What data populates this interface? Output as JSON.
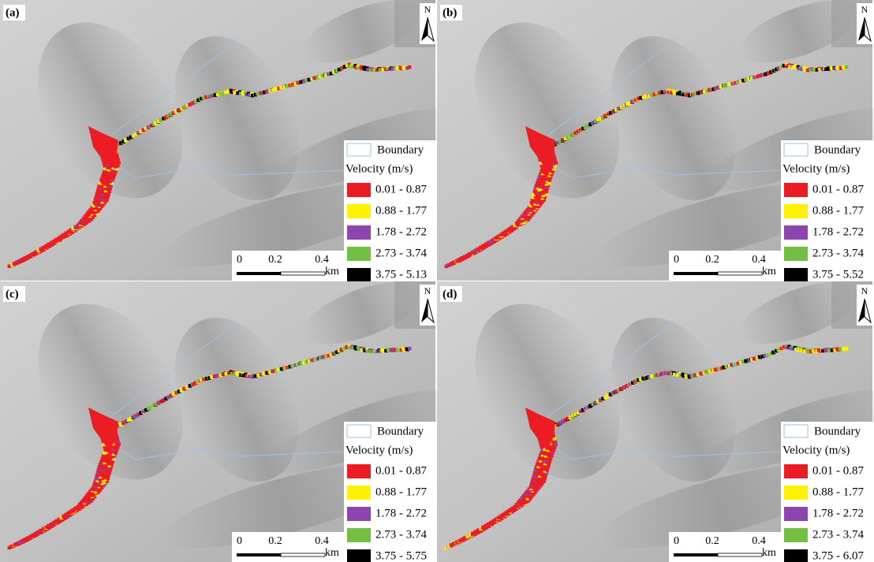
{
  "panels": [
    {
      "label": "(a)",
      "north": "N",
      "legend": {
        "boundary": "Boundary",
        "title": "Velocity (m/s)",
        "classes": [
          {
            "label": "0.01 - 0.87",
            "color": "#ec1c24"
          },
          {
            "label": "0.88 - 1.77",
            "color": "#fff200"
          },
          {
            "label": "1.78 - 2.72",
            "color": "#8e44ad"
          },
          {
            "label": "2.73 - 3.74",
            "color": "#72bf44"
          },
          {
            "label": "3.75 - 5.13",
            "color": "#000000"
          }
        ]
      },
      "scale": {
        "ticks": [
          "0",
          "0.2",
          "0.4"
        ],
        "unit": "km"
      }
    },
    {
      "label": "(b)",
      "north": "N",
      "legend": {
        "boundary": "Boundary",
        "title": "Velocity (m/s)",
        "classes": [
          {
            "label": "0.01 - 0.87",
            "color": "#ec1c24"
          },
          {
            "label": "0.88 - 1.77",
            "color": "#fff200"
          },
          {
            "label": "1.78 - 2.72",
            "color": "#8e44ad"
          },
          {
            "label": "2.73 - 3.74",
            "color": "#72bf44"
          },
          {
            "label": "3.75 - 5.52",
            "color": "#000000"
          }
        ]
      },
      "scale": {
        "ticks": [
          "0",
          "0.2",
          "0.4"
        ],
        "unit": "km"
      }
    },
    {
      "label": "(c)",
      "north": "N",
      "legend": {
        "boundary": "Boundary",
        "title": "Velocity (m/s)",
        "classes": [
          {
            "label": "0.01 - 0.87",
            "color": "#ec1c24"
          },
          {
            "label": "0.88 - 1.77",
            "color": "#fff200"
          },
          {
            "label": "1.78 - 2.72",
            "color": "#8e44ad"
          },
          {
            "label": "2.73 - 3.74",
            "color": "#72bf44"
          },
          {
            "label": "3.75 - 5.75",
            "color": "#000000"
          }
        ]
      },
      "scale": {
        "ticks": [
          "0",
          "0.2",
          "0.4"
        ],
        "unit": "km"
      }
    },
    {
      "label": "(d)",
      "north": "N",
      "legend": {
        "boundary": "Boundary",
        "title": "Velocity (m/s)",
        "classes": [
          {
            "label": "0.01 - 0.87",
            "color": "#ec1c24"
          },
          {
            "label": "0.88 - 1.77",
            "color": "#fff200"
          },
          {
            "label": "1.78 - 2.72",
            "color": "#8e44ad"
          },
          {
            "label": "2.73 - 3.74",
            "color": "#72bf44"
          },
          {
            "label": "3.75 - 6.07",
            "color": "#000000"
          }
        ]
      },
      "scale": {
        "ticks": [
          "0",
          "0.2",
          "0.4"
        ],
        "unit": "km"
      }
    }
  ]
}
